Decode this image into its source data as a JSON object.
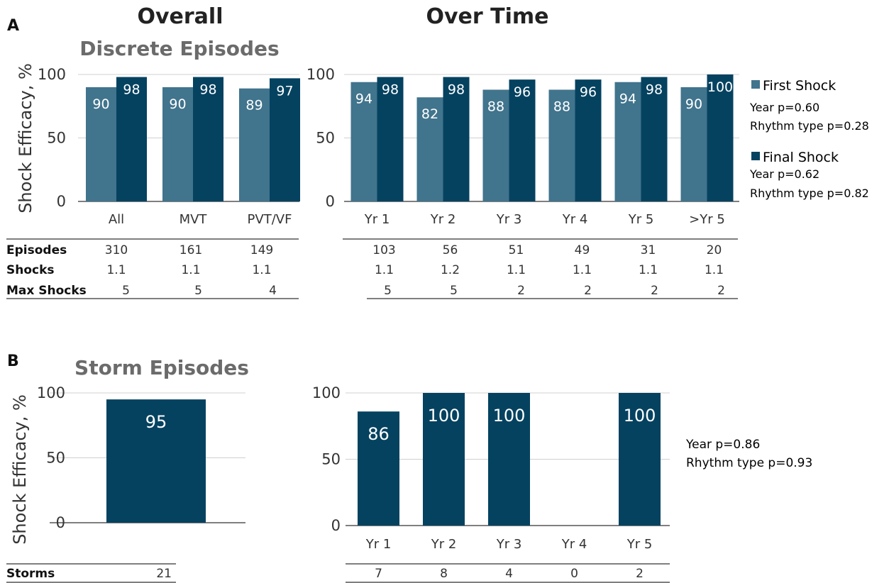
{
  "panel_a": {
    "label": "A",
    "overall_heading": "Overall",
    "overtime_heading": "Over Time",
    "subtitle": "Discrete Episodes",
    "ylabel": "Shock Efficacy, %",
    "row_labels": [
      "Episodes",
      "Shocks",
      "Max Shocks"
    ],
    "legend": {
      "first": {
        "label": "First Shock",
        "stats": [
          "Year p=0.60",
          "Rhythm type p=0.28"
        ]
      },
      "final": {
        "label": "Final Shock",
        "stats": [
          "Year p=0.62",
          "Rhythm type p=0.82"
        ]
      }
    }
  },
  "panel_b": {
    "label": "B",
    "subtitle": "Storm Episodes",
    "ylabel": "Shock Efficacy, %",
    "row_label": "Storms",
    "stats": [
      "Year p=0.86",
      "Rhythm type p=0.93"
    ]
  },
  "colors": {
    "first": "#41748d",
    "final": "#054260",
    "grid": "#d0d0d0",
    "text": "#333333"
  },
  "chart_data": [
    {
      "type": "bar",
      "panel": "A-overall",
      "categories": [
        "All",
        "MVT",
        "PVT/VF"
      ],
      "series": [
        {
          "name": "First Shock",
          "values": [
            90,
            90,
            89
          ]
        },
        {
          "name": "Final Shock",
          "values": [
            98,
            98,
            97
          ]
        }
      ],
      "ylim": [
        0,
        100
      ],
      "yticks": [
        0,
        50,
        100
      ],
      "ylabel": "Shock Efficacy, %",
      "table": {
        "Episodes": [
          "310",
          "161",
          "149"
        ],
        "Shocks": [
          "1.1",
          "1.1",
          "1.1"
        ],
        "Max Shocks": [
          "5",
          "5",
          "4"
        ]
      }
    },
    {
      "type": "bar",
      "panel": "A-over-time",
      "categories": [
        "Yr 1",
        "Yr 2",
        "Yr 3",
        "Yr 4",
        "Yr 5",
        ">Yr 5"
      ],
      "series": [
        {
          "name": "First Shock",
          "values": [
            94,
            82,
            88,
            88,
            94,
            90
          ]
        },
        {
          "name": "Final Shock",
          "values": [
            98,
            98,
            96,
            96,
            98,
            100
          ]
        }
      ],
      "ylim": [
        0,
        100
      ],
      "yticks": [
        0,
        50,
        100
      ],
      "table": {
        "Episodes": [
          "103",
          "56",
          "51",
          "49",
          "31",
          "20"
        ],
        "Shocks": [
          "1.1",
          "1.2",
          "1.1",
          "1.1",
          "1.1",
          "1.1"
        ],
        "Max Shocks": [
          "5",
          "5",
          "2",
          "2",
          "2",
          "2"
        ]
      }
    },
    {
      "type": "bar",
      "panel": "B-overall",
      "categories": [
        ""
      ],
      "values": [
        95
      ],
      "ylim": [
        0,
        100
      ],
      "yticks": [
        0,
        50,
        100
      ],
      "ylabel": "Shock Efficacy, %",
      "table": {
        "Storms": [
          "21"
        ]
      }
    },
    {
      "type": "bar",
      "panel": "B-over-time",
      "categories": [
        "Yr 1",
        "Yr 2",
        "Yr 3",
        "Yr 4",
        "Yr 5"
      ],
      "values": [
        86,
        100,
        100,
        null,
        100
      ],
      "ylim": [
        0,
        100
      ],
      "yticks": [
        0,
        50,
        100
      ],
      "table": {
        "Storms": [
          "7",
          "8",
          "4",
          "0",
          "2"
        ]
      }
    }
  ]
}
